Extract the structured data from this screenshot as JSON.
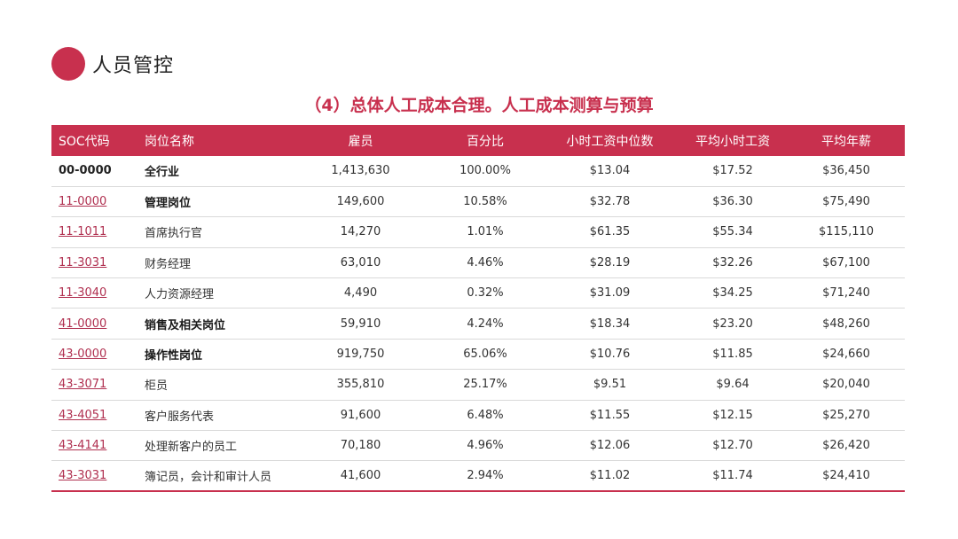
{
  "header": {
    "title": "人员管控"
  },
  "subtitle": "（4）总体人工成本合理。人工成本测算与预算",
  "colors": {
    "accent": "#c8304e"
  },
  "table": {
    "columns": [
      "SOC代码",
      "岗位名称",
      "雇员",
      "百分比",
      "小时工资中位数",
      "平均小时工资",
      "平均年薪"
    ],
    "rows": [
      {
        "code": "00-0000",
        "name": "全行业",
        "employees": "1,413,630",
        "percent": "100.00%",
        "median_hourly": "$13.04",
        "mean_hourly": "$17.52",
        "annual": "$36,450"
      },
      {
        "code": "11-0000",
        "name": "管理岗位",
        "employees": "149,600",
        "percent": "10.58%",
        "median_hourly": "$32.78",
        "mean_hourly": "$36.30",
        "annual": "$75,490"
      },
      {
        "code": "11-1011",
        "name": "首席执行官",
        "employees": "14,270",
        "percent": "1.01%",
        "median_hourly": "$61.35",
        "mean_hourly": "$55.34",
        "annual": "$115,110"
      },
      {
        "code": "11-3031",
        "name": "财务经理",
        "employees": "63,010",
        "percent": "4.46%",
        "median_hourly": "$28.19",
        "mean_hourly": "$32.26",
        "annual": "$67,100"
      },
      {
        "code": "11-3040",
        "name": "人力资源经理",
        "employees": "4,490",
        "percent": "0.32%",
        "median_hourly": "$31.09",
        "mean_hourly": "$34.25",
        "annual": "$71,240"
      },
      {
        "code": "41-0000",
        "name": "销售及相关岗位",
        "employees": "59,910",
        "percent": "4.24%",
        "median_hourly": "$18.34",
        "mean_hourly": "$23.20",
        "annual": "$48,260"
      },
      {
        "code": "43-0000",
        "name": "操作性岗位",
        "employees": "919,750",
        "percent": "65.06%",
        "median_hourly": "$10.76",
        "mean_hourly": "$11.85",
        "annual": "$24,660"
      },
      {
        "code": "43-3071",
        "name": "柜员",
        "employees": "355,810",
        "percent": "25.17%",
        "median_hourly": "$9.51",
        "mean_hourly": "$9.64",
        "annual": "$20,040"
      },
      {
        "code": "43-4051",
        "name": "客户服务代表",
        "employees": "91,600",
        "percent": "6.48%",
        "median_hourly": "$11.55",
        "mean_hourly": "$12.15",
        "annual": "$25,270"
      },
      {
        "code": "43-4141",
        "name": "处理新客户的员工",
        "employees": "70,180",
        "percent": "4.96%",
        "median_hourly": "$12.06",
        "mean_hourly": "$12.70",
        "annual": "$26,420"
      },
      {
        "code": "43-3031",
        "name": "簿记员，会计和审计人员",
        "employees": "41,600",
        "percent": "2.94%",
        "median_hourly": "$11.02",
        "mean_hourly": "$11.74",
        "annual": "$24,410"
      }
    ]
  }
}
